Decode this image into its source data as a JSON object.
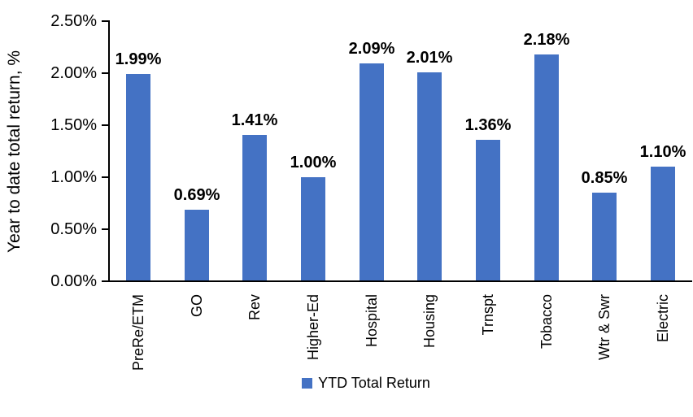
{
  "chart_data": {
    "type": "bar",
    "title": "",
    "xlabel": "",
    "ylabel": "Year to date total return, %",
    "categories": [
      "PreRe/ETM",
      "GO",
      "Rev",
      "Higher-Ed",
      "Hospital",
      "Housing",
      "Trnspt",
      "Tobacco",
      "Wtr & Swr",
      "Electric"
    ],
    "series": [
      {
        "name": "YTD Total Return",
        "values": [
          1.99,
          0.69,
          1.41,
          1.0,
          2.09,
          2.01,
          1.36,
          2.18,
          0.85,
          1.1
        ],
        "labels": [
          "1.99%",
          "0.69%",
          "1.41%",
          "1.00%",
          "2.09%",
          "2.01%",
          "1.36%",
          "2.18%",
          "0.85%",
          "1.10%"
        ],
        "color": "#4472C4"
      }
    ],
    "yticks": [
      {
        "value": 0.0,
        "label": "0.00%"
      },
      {
        "value": 0.5,
        "label": "0.50%"
      },
      {
        "value": 1.0,
        "label": "1.00%"
      },
      {
        "value": 1.5,
        "label": "1.50%"
      },
      {
        "value": 2.0,
        "label": "2.00%"
      },
      {
        "value": 2.5,
        "label": "2.50%"
      }
    ],
    "ylim": [
      0,
      2.5
    ],
    "grid": false,
    "legend": {
      "position": "bottom",
      "entries": [
        {
          "label": "YTD Total Return",
          "swatch_color": "#4472C4"
        }
      ]
    }
  },
  "colors": {
    "bar": "#4472C4",
    "axis": "#000000",
    "text": "#000000",
    "background": "#FFFFFF"
  }
}
